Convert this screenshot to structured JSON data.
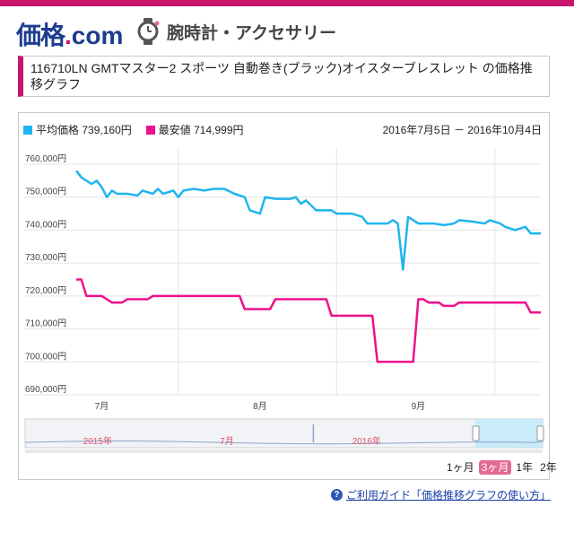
{
  "header": {
    "logo_main": "価格",
    "logo_dot": ".",
    "logo_com": "com",
    "category": "腕時計・アクセサリー",
    "watch_icon": "watch-icon"
  },
  "title": "116710LN GMTマスター2 スポーツ 自動巻き(ブラック)オイスターブレスレット の価格推移グラフ",
  "legend": {
    "avg_label": "平均価格",
    "avg_value": "739,160円",
    "min_label": "最安値",
    "min_value": "714,999円"
  },
  "date_range": "2016年7月5日 － 2016年10月4日",
  "range_buttons": [
    "1ヶ月",
    "3ヶ月",
    "1年",
    "2年"
  ],
  "active_range": "3ヶ月",
  "guide_link": "ご利用ガイド「価格推移グラフの使い方」",
  "colors": {
    "avg": "#1fb5ee",
    "min": "#ec128c",
    "accent": "#c8166d",
    "navigator": "#bfe8fb"
  },
  "chart_data": {
    "type": "line",
    "title": "",
    "xlabel": "",
    "ylabel": "",
    "ylim": [
      690000,
      760000
    ],
    "yticks": [
      {
        "value": 760000,
        "label": "760,000円"
      },
      {
        "value": 750000,
        "label": "750,000円"
      },
      {
        "value": 740000,
        "label": "740,000円"
      },
      {
        "value": 730000,
        "label": "730,000円"
      },
      {
        "value": 720000,
        "label": "720,000円"
      },
      {
        "value": 710000,
        "label": "710,000円"
      },
      {
        "value": 700000,
        "label": "700,000円"
      },
      {
        "value": 690000,
        "label": "690,000円"
      }
    ],
    "x_range": [
      "2016-07-05",
      "2016-10-04"
    ],
    "xticks": [
      {
        "date": "2016-07-10",
        "label": "7月"
      },
      {
        "date": "2016-08-10",
        "label": "8月"
      },
      {
        "date": "2016-09-10",
        "label": "9月"
      }
    ],
    "month_gridlines": [
      "2016-07-25",
      "2016-08-25",
      "2016-09-25"
    ],
    "grid": true,
    "legend_position": "top-left",
    "series": [
      {
        "name": "平均価格",
        "color": "#1fb5ee",
        "points": [
          [
            "2016-07-05",
            758000
          ],
          [
            "2016-07-06",
            756000
          ],
          [
            "2016-07-07",
            755000
          ],
          [
            "2016-07-08",
            754000
          ],
          [
            "2016-07-09",
            755000
          ],
          [
            "2016-07-10",
            753000
          ],
          [
            "2016-07-11",
            750000
          ],
          [
            "2016-07-12",
            752000
          ],
          [
            "2016-07-13",
            751000
          ],
          [
            "2016-07-15",
            751000
          ],
          [
            "2016-07-17",
            750500
          ],
          [
            "2016-07-18",
            752000
          ],
          [
            "2016-07-20",
            751000
          ],
          [
            "2016-07-21",
            752500
          ],
          [
            "2016-07-22",
            751000
          ],
          [
            "2016-07-24",
            752000
          ],
          [
            "2016-07-25",
            750000
          ],
          [
            "2016-07-26",
            752000
          ],
          [
            "2016-07-28",
            752500
          ],
          [
            "2016-07-30",
            752000
          ],
          [
            "2016-08-01",
            752500
          ],
          [
            "2016-08-03",
            752500
          ],
          [
            "2016-08-05",
            751000
          ],
          [
            "2016-08-07",
            750000
          ],
          [
            "2016-08-08",
            746000
          ],
          [
            "2016-08-10",
            745000
          ],
          [
            "2016-08-11",
            750000
          ],
          [
            "2016-08-13",
            749500
          ],
          [
            "2016-08-16",
            749500
          ],
          [
            "2016-08-17",
            750000
          ],
          [
            "2016-08-18",
            748000
          ],
          [
            "2016-08-19",
            749000
          ],
          [
            "2016-08-21",
            746000
          ],
          [
            "2016-08-24",
            746000
          ],
          [
            "2016-08-25",
            745000
          ],
          [
            "2016-08-28",
            745000
          ],
          [
            "2016-08-30",
            744000
          ],
          [
            "2016-08-31",
            742000
          ],
          [
            "2016-09-02",
            742000
          ],
          [
            "2016-09-04",
            742000
          ],
          [
            "2016-09-05",
            743000
          ],
          [
            "2016-09-06",
            742000
          ],
          [
            "2016-09-07",
            728000
          ],
          [
            "2016-09-08",
            744000
          ],
          [
            "2016-09-09",
            743000
          ],
          [
            "2016-09-10",
            742000
          ],
          [
            "2016-09-13",
            742000
          ],
          [
            "2016-09-15",
            741500
          ],
          [
            "2016-09-17",
            742000
          ],
          [
            "2016-09-18",
            743000
          ],
          [
            "2016-09-21",
            742500
          ],
          [
            "2016-09-23",
            742000
          ],
          [
            "2016-09-24",
            743000
          ],
          [
            "2016-09-26",
            742000
          ],
          [
            "2016-09-27",
            741000
          ],
          [
            "2016-09-29",
            740000
          ],
          [
            "2016-10-01",
            741000
          ],
          [
            "2016-10-02",
            739000
          ],
          [
            "2016-10-04",
            739000
          ]
        ]
      },
      {
        "name": "最安値",
        "color": "#ec128c",
        "points": [
          [
            "2016-07-05",
            725000
          ],
          [
            "2016-07-06",
            725000
          ],
          [
            "2016-07-07",
            720000
          ],
          [
            "2016-07-10",
            720000
          ],
          [
            "2016-07-12",
            718000
          ],
          [
            "2016-07-14",
            718000
          ],
          [
            "2016-07-15",
            719000
          ],
          [
            "2016-07-19",
            719000
          ],
          [
            "2016-07-20",
            720000
          ],
          [
            "2016-08-06",
            720000
          ],
          [
            "2016-08-07",
            716000
          ],
          [
            "2016-08-12",
            716000
          ],
          [
            "2016-08-13",
            719000
          ],
          [
            "2016-08-23",
            719000
          ],
          [
            "2016-08-24",
            714000
          ],
          [
            "2016-09-01",
            714000
          ],
          [
            "2016-09-02",
            700000
          ],
          [
            "2016-09-09",
            700000
          ],
          [
            "2016-09-10",
            719000
          ],
          [
            "2016-09-11",
            719000
          ],
          [
            "2016-09-12",
            718000
          ],
          [
            "2016-09-14",
            718000
          ],
          [
            "2016-09-15",
            717000
          ],
          [
            "2016-09-17",
            717000
          ],
          [
            "2016-09-18",
            718000
          ],
          [
            "2016-10-01",
            718000
          ],
          [
            "2016-10-02",
            715000
          ],
          [
            "2016-10-04",
            715000
          ]
        ]
      }
    ],
    "navigator": {
      "labels": [
        {
          "text": "2015年",
          "pos": 0.14
        },
        {
          "text": "7月",
          "pos": 0.39
        },
        {
          "text": "2016年",
          "pos": 0.66
        }
      ],
      "selected_start": 0.87
    }
  }
}
